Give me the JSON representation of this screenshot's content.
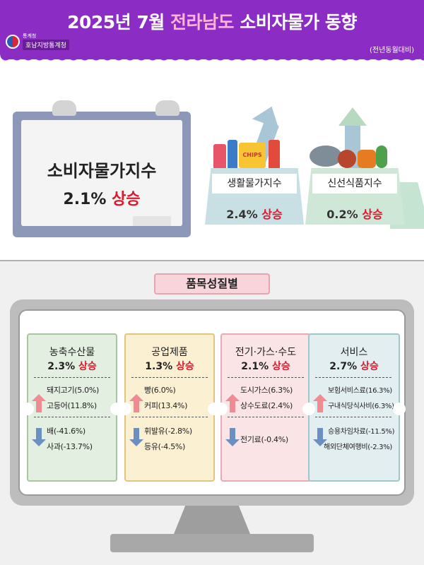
{
  "header": {
    "title_prefix": "2025년 7월 ",
    "title_region": "전라남도",
    "title_suffix": " 소비자물가 동향",
    "org_small": "통계청",
    "org_name": "호남지방통계청",
    "note": "(전년동월대비)"
  },
  "cpi": {
    "label": "소비자물가지수",
    "value": "2.1%",
    "trend": "상승"
  },
  "living": {
    "label": "생활물가지수",
    "value": "2.4%",
    "trend": "상승",
    "item_text": "CHIPS"
  },
  "fresh": {
    "label": "신선식품지수",
    "value": "0.2%",
    "trend": "상승"
  },
  "section_title": "품목성질별",
  "categories": [
    {
      "name": "농축수산물",
      "value": "2.3%",
      "trend": "상승",
      "up": [
        "돼지고기(5.0%)",
        "고등어(11.8%)"
      ],
      "down": [
        "배(-41.6%)",
        "사과(-13.7%)"
      ]
    },
    {
      "name": "공업제품",
      "value": "1.3%",
      "trend": "상승",
      "up": [
        "빵(6.0%)",
        "커피(13.4%)"
      ],
      "down": [
        "휘발유(-2.8%)",
        "등유(-4.5%)"
      ]
    },
    {
      "name": "전기·가스·수도",
      "value": "2.1%",
      "trend": "상승",
      "up": [
        "도시가스(6.3%)",
        "상수도료(2.4%)"
      ],
      "down": [
        "전기료(-0.4%)"
      ]
    },
    {
      "name": "서비스",
      "value": "2.7%",
      "trend": "상승",
      "up": [
        "보험서비스료(16.3%)",
        "구내식당식사비(6.3%)"
      ],
      "down": [
        "승용차임차료(-11.5%)",
        "해외단체여행비(-2.3%)"
      ]
    }
  ],
  "colors": {
    "header": "#8b2cc4",
    "accent_red": "#e0172b",
    "ticket_green": "#e3efe1",
    "ticket_yellow": "#fbf0d2",
    "ticket_pink": "#fbe4e6",
    "ticket_blue": "#e2eef0"
  }
}
